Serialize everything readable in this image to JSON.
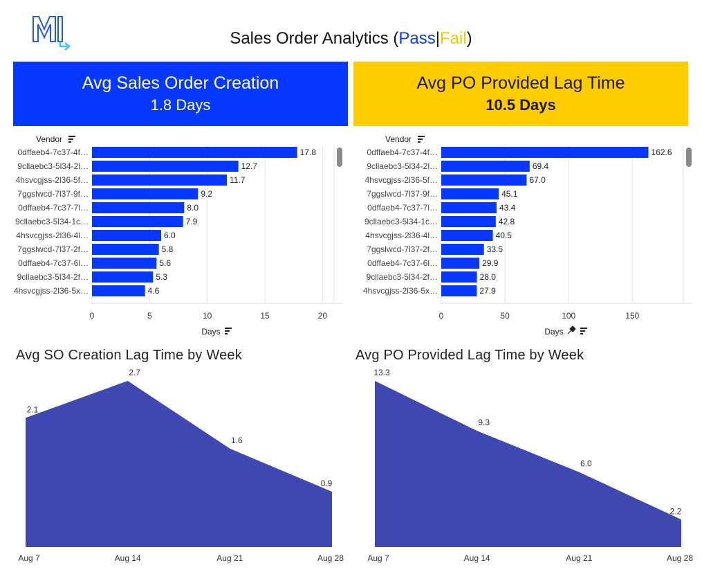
{
  "header": {
    "title_prefix": "Sales Order Analytics (",
    "pass_label": "Pass",
    "separator": "|",
    "fail_label": "Fail",
    "title_suffix": ")",
    "pass_color": "#0b3bff",
    "fail_color": "#f4c800"
  },
  "kpis": {
    "left": {
      "label": "Avg Sales Order Creation",
      "value": "1.8 Days",
      "color": "#0638ff"
    },
    "right": {
      "label": "Avg PO Provided Lag Time",
      "value": "10.5 Days",
      "color": "#ffcc00"
    }
  },
  "icons": {
    "logo": "m-arrow-logo-icon",
    "sort": "sort-icon",
    "pin": "pin-icon",
    "scroll": "scrollbar-thumb"
  },
  "chart_data": [
    {
      "type": "bar",
      "orientation": "horizontal",
      "ylabel": "Vendor",
      "xlabel": "Days",
      "color": "#0638ff",
      "categories": [
        "0dffaeb4-7c37-4f…",
        "9cllaebc3-5l34-2l…",
        "4hsvcgjss-2l36-5f…",
        "7ggslwcd-7l37-9f…",
        "0dffaeb4-7c37-7l…",
        "9cllaebc3-5l34-1c…",
        "4hsvcgjss-2l36-4l…",
        "7ggslwcd-7l37-2f…",
        "0dffaeb4-7c37-6l…",
        "9cllaebc3-5l34-2f…",
        "4hsvcgjss-2l36-5x…"
      ],
      "values": [
        17.8,
        12.7,
        11.7,
        9.2,
        8.0,
        7.9,
        6.0,
        5.8,
        5.6,
        5.3,
        4.6
      ],
      "value_labels": [
        "17.8",
        "12.7",
        "11.7",
        "9.2",
        "8.0",
        "7.9",
        "6.0",
        "5.8",
        "5.6",
        "5.3",
        "4.6"
      ],
      "xlim": [
        0,
        21
      ],
      "xticks": [
        0,
        5,
        10,
        15,
        20
      ],
      "xtick_labels": [
        "0",
        "5",
        "10",
        "15",
        "20"
      ],
      "grid": true,
      "pinned_axis": false
    },
    {
      "type": "bar",
      "orientation": "horizontal",
      "ylabel": "Vendor",
      "xlabel": "Days",
      "color": "#0638ff",
      "categories": [
        "0dffaeb4-7c37-4f…",
        "9cllaebc3-5l34-2l…",
        "4hsvcgjss-2l36-5f…",
        "7ggslwcd-7l37-9f…",
        "0dffaeb4-7c37-7l…",
        "9cllaebc3-5l34-1c…",
        "4hsvcgjss-2l36-4l…",
        "7ggslwcd-7l37-2f…",
        "0dffaeb4-7c37-6l…",
        "9cllaebc3-5l34-2f…",
        "4hsvcgjss-2l36-5x…"
      ],
      "values": [
        162.6,
        69.4,
        67.0,
        45.1,
        43.4,
        42.8,
        40.5,
        33.5,
        29.9,
        28.0,
        27.9
      ],
      "value_labels": [
        "162.6",
        "69.4",
        "67.0",
        "45.1",
        "43.4",
        "42.8",
        "40.5",
        "33.5",
        "29.9",
        "28.0",
        "27.9"
      ],
      "xlim": [
        0,
        190
      ],
      "xticks": [
        0,
        50,
        100,
        150
      ],
      "xtick_labels": [
        "0",
        "50",
        "100",
        "150"
      ],
      "grid": true,
      "pinned_axis": true
    },
    {
      "type": "area",
      "title": "Avg SO Creation Lag Time by Week",
      "color": "#3f48b0",
      "categories": [
        "Aug 7",
        "Aug 14",
        "Aug 21",
        "Aug 28"
      ],
      "values": [
        2.1,
        2.7,
        1.6,
        0.9
      ],
      "value_labels": [
        "2.1",
        "2.7",
        "1.6",
        "0.9"
      ],
      "ylim": [
        0,
        2.7
      ]
    },
    {
      "type": "area",
      "title": "Avg PO Provided Lag Time by Week",
      "color": "#3f48b0",
      "categories": [
        "Aug 7",
        "Aug 14",
        "Aug 21",
        "Aug 28"
      ],
      "values": [
        13.3,
        9.3,
        6.0,
        2.2
      ],
      "value_labels": [
        "13.3",
        "9.3",
        "6.0",
        "2.2"
      ],
      "ylim": [
        0,
        13.3
      ]
    }
  ]
}
